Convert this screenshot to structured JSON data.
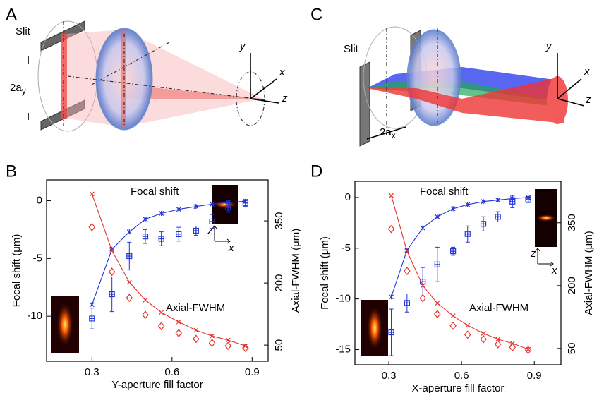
{
  "figure": {
    "panel_letters": [
      "A",
      "B",
      "C",
      "D"
    ]
  },
  "diagram_a": {
    "slit_label": "Slit",
    "aperture_label": "2a",
    "aperture_sub": "y",
    "axes": [
      "y",
      "x",
      "z"
    ]
  },
  "diagram_c": {
    "slit_label": "Slit",
    "aperture_label": "2a",
    "aperture_sub": "x",
    "axes": [
      "y",
      "x",
      "z"
    ]
  },
  "chart_data": [
    {
      "type": "line",
      "xlabel": "Y-aperture fill factor",
      "ylabel": "Focal shift (μm)",
      "y2label": "Axial-FWHM (μm)",
      "annotations": [
        "Focal shift",
        "Axial-FWHM"
      ],
      "inset_axes": [
        "z",
        "x"
      ],
      "xlim": [
        0.13,
        0.96
      ],
      "ylim": [
        -13.9,
        1.8
      ],
      "y2lim": [
        11,
        449
      ],
      "xticks": [
        0.3,
        0.6,
        0.9
      ],
      "yticks": [
        -10,
        -5,
        0
      ],
      "y2ticks": [
        50,
        200,
        350
      ],
      "x": [
        0.3,
        0.375,
        0.44,
        0.5,
        0.56,
        0.625,
        0.69,
        0.75,
        0.81,
        0.875
      ],
      "series": [
        {
          "color": "#2233d8",
          "marker": "star",
          "line": true,
          "values": [
            -9.0,
            -4.2,
            -2.7,
            -1.6,
            -1.1,
            -0.75,
            -0.5,
            -0.3,
            -0.15,
            -0.05
          ]
        },
        {
          "color": "#2233d8",
          "marker": "square",
          "line": false,
          "values": [
            -10.2,
            -8.1,
            -4.8,
            -3.1,
            -3.3,
            -2.9,
            -2.6,
            -1.8,
            -0.6,
            -0.2
          ],
          "errors": [
            0.9,
            1.5,
            1.2,
            0.6,
            0.6,
            0.6,
            0.4,
            0.6,
            0.4,
            0.3
          ]
        },
        {
          "color": "#e8322a",
          "marker": "cross",
          "line": true,
          "axis": "y2",
          "values": [
            415,
            278,
            202,
            159,
            129,
            106,
            86,
            72,
            62,
            48
          ]
        },
        {
          "color": "#e8322a",
          "marker": "diamond",
          "line": false,
          "axis": "y2",
          "values": [
            335,
            227,
            164,
            123,
            96,
            79,
            65,
            55,
            48,
            43
          ]
        }
      ]
    },
    {
      "type": "line",
      "xlabel": "X-aperture fill factor",
      "ylabel": "Focal shift (μm)",
      "y2label": "Axial-FWHM (μm)",
      "annotations": [
        "Focal shift",
        "Axial-FWHM"
      ],
      "inset_axes": [
        "z",
        "x"
      ],
      "xlim": [
        0.16,
        1.01
      ],
      "ylim": [
        -16.5,
        1.6
      ],
      "y2lim": [
        11,
        449
      ],
      "xticks": [
        0.3,
        0.6,
        0.9
      ],
      "yticks": [
        -15,
        -10,
        -5,
        0
      ],
      "y2ticks": [
        50,
        200,
        350
      ],
      "x": [
        0.31,
        0.375,
        0.44,
        0.5,
        0.565,
        0.625,
        0.69,
        0.75,
        0.81,
        0.875
      ],
      "series": [
        {
          "color": "#2233d8",
          "marker": "star",
          "line": true,
          "values": [
            -9.8,
            -5.2,
            -3.0,
            -1.9,
            -1.1,
            -0.7,
            -0.4,
            -0.25,
            -0.1,
            0.0
          ]
        },
        {
          "color": "#2233d8",
          "marker": "square",
          "line": false,
          "values": [
            -13.3,
            -10.4,
            -8.3,
            -6.6,
            -5.3,
            -3.6,
            -2.6,
            -1.9,
            -0.4,
            -0.2
          ],
          "errors": [
            2.3,
            0.9,
            1.4,
            1.7,
            0.4,
            0.8,
            0.7,
            0.5,
            0.6,
            0.3
          ]
        },
        {
          "color": "#e8322a",
          "marker": "cross",
          "line": true,
          "axis": "y2",
          "values": [
            415,
            282,
            200,
            158,
            128,
            105,
            86,
            72,
            62,
            48
          ]
        },
        {
          "color": "#e8322a",
          "marker": "diamond",
          "line": false,
          "axis": "y2",
          "values": [
            335,
            235,
            170,
            132,
            104,
            83,
            72,
            60,
            53,
            46
          ]
        }
      ]
    }
  ]
}
